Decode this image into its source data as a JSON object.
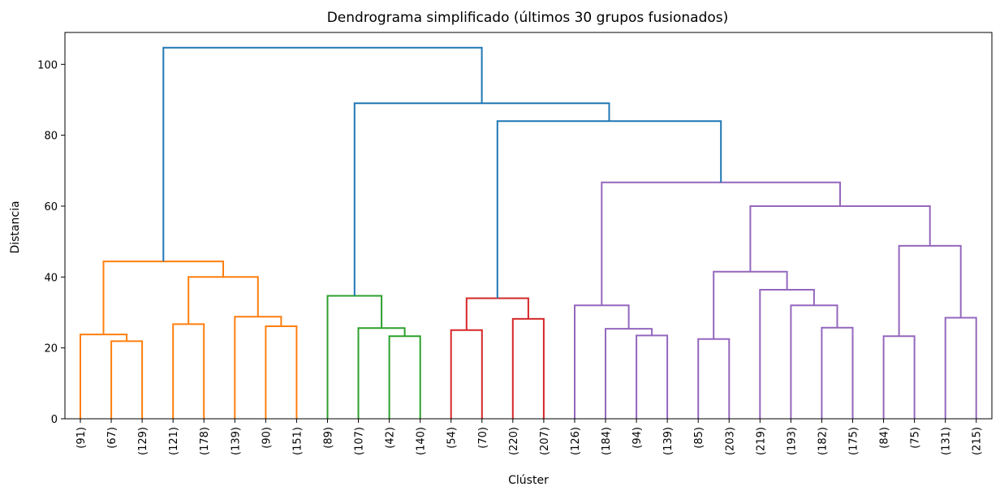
{
  "chart_data": {
    "type": "dendrogram",
    "title": "Dendrograma simplificado (últimos 30 grupos fusionados)",
    "xlabel": "Clúster",
    "ylabel": "Distancia",
    "ylim": [
      0,
      109
    ],
    "yticks": [
      0,
      20,
      40,
      60,
      80,
      100
    ],
    "grid": false,
    "leaves": [
      "(91)",
      "(67)",
      "(129)",
      "(121)",
      "(178)",
      "(139)",
      "(90)",
      "(151)",
      "(89)",
      "(107)",
      "(42)",
      "(140)",
      "(54)",
      "(70)",
      "(220)",
      "(207)",
      "(126)",
      "(184)",
      "(94)",
      "(139)",
      "(85)",
      "(203)",
      "(219)",
      "(193)",
      "(182)",
      "(175)",
      "(84)",
      "(75)",
      "(131)",
      "(215)"
    ],
    "colors": {
      "root": "#1f77b4",
      "orange": "#ff7f0e",
      "green": "#2ca02c",
      "red": "#d62728",
      "purple": "#9467bd"
    },
    "links": [
      {
        "left": 1,
        "right": 2,
        "height": 21.9,
        "color": "orange"
      },
      {
        "left": 0,
        "right": 30,
        "height": 23.8,
        "color": "orange"
      },
      {
        "left": 3,
        "right": 4,
        "height": 26.7,
        "color": "orange"
      },
      {
        "left": 6,
        "right": 7,
        "height": 26.1,
        "color": "orange"
      },
      {
        "left": 5,
        "right": 33,
        "height": 28.8,
        "color": "orange"
      },
      {
        "left": 32,
        "right": 34,
        "height": 40.0,
        "color": "orange"
      },
      {
        "left": 31,
        "right": 35,
        "height": 44.4,
        "color": "orange"
      },
      {
        "left": 10,
        "right": 11,
        "height": 23.3,
        "color": "green"
      },
      {
        "left": 9,
        "right": 37,
        "height": 25.6,
        "color": "green"
      },
      {
        "left": 8,
        "right": 38,
        "height": 34.7,
        "color": "green"
      },
      {
        "left": 12,
        "right": 13,
        "height": 25.0,
        "color": "red"
      },
      {
        "left": 14,
        "right": 15,
        "height": 28.2,
        "color": "red"
      },
      {
        "left": 40,
        "right": 41,
        "height": 34.0,
        "color": "red"
      },
      {
        "left": 18,
        "right": 19,
        "height": 23.5,
        "color": "purple"
      },
      {
        "left": 17,
        "right": 43,
        "height": 25.4,
        "color": "purple"
      },
      {
        "left": 16,
        "right": 44,
        "height": 32.0,
        "color": "purple"
      },
      {
        "left": 20,
        "right": 21,
        "height": 22.5,
        "color": "purple"
      },
      {
        "left": 24,
        "right": 25,
        "height": 25.7,
        "color": "purple"
      },
      {
        "left": 23,
        "right": 47,
        "height": 32.0,
        "color": "purple"
      },
      {
        "left": 22,
        "right": 48,
        "height": 36.4,
        "color": "purple"
      },
      {
        "left": 46,
        "right": 49,
        "height": 41.5,
        "color": "purple"
      },
      {
        "left": 26,
        "right": 27,
        "height": 23.3,
        "color": "purple"
      },
      {
        "left": 28,
        "right": 29,
        "height": 28.5,
        "color": "purple"
      },
      {
        "left": 51,
        "right": 52,
        "height": 48.8,
        "color": "purple"
      },
      {
        "left": 50,
        "right": 53,
        "height": 60.0,
        "color": "purple"
      },
      {
        "left": 45,
        "right": 54,
        "height": 66.7,
        "color": "purple"
      },
      {
        "left": 42,
        "right": 55,
        "height": 84.0,
        "color": "root"
      },
      {
        "left": 39,
        "right": 56,
        "height": 89.0,
        "color": "root"
      },
      {
        "left": 36,
        "right": 57,
        "height": 104.7,
        "color": "root"
      }
    ]
  }
}
